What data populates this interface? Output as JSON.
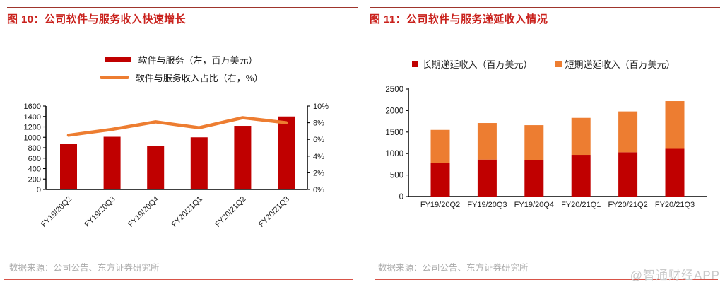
{
  "watermark": "@智通财经APP",
  "colors": {
    "bar_red": "#C00000",
    "orange": "#ED7D31",
    "title_red": "#C9211C",
    "top_rule": "#9E352C",
    "bottom_rule": "#D85348",
    "source_gray": "#ABABAB",
    "watermark_gray": "#C9C9C9",
    "axis_text": "#1A1A1A"
  },
  "figure10": {
    "title": "图 10：公司软件与服务收入快速增长",
    "source": "数据来源：公司公告、东方证券研究所",
    "legend": [
      {
        "label": "软件与服务（左，百万美元）"
      },
      {
        "label": "软件与服务收入占比（右，%）"
      }
    ]
  },
  "figure11": {
    "title": "图 11：公司软件与服务递延收入情况",
    "source": "数据来源：公司公告、东方证券研究所",
    "legend": [
      {
        "label": "长期递延收入（百万美元）"
      },
      {
        "label": "短期递延收入（百万美元）"
      }
    ]
  },
  "chart_data": [
    {
      "type": "bar",
      "title": "公司软件与服务收入快速增长",
      "categories": [
        "FY19/20Q2",
        "FY19/20Q3",
        "FY19/20Q4",
        "FY20/21Q1",
        "FY20/21Q2",
        "FY20/21Q3"
      ],
      "series": [
        {
          "name": "软件与服务（左，百万美元）",
          "type": "bar",
          "axis": "left",
          "color": "#C00000",
          "values": [
            880,
            1010,
            840,
            1000,
            1220,
            1400
          ]
        },
        {
          "name": "软件与服务收入占比（右，%）",
          "type": "line",
          "axis": "right",
          "color": "#ED7D31",
          "values": [
            6.5,
            7.2,
            8.1,
            7.4,
            8.6,
            8.0
          ]
        }
      ],
      "left_axis": {
        "min": 0,
        "max": 1600,
        "step": 200
      },
      "right_axis": {
        "min": 0,
        "max": 10,
        "step": 2,
        "suffix": "%"
      },
      "grid": false,
      "legend_position": "top"
    },
    {
      "type": "bar",
      "stacked": true,
      "title": "公司软件与服务递延收入情况",
      "categories": [
        "FY19/20Q2",
        "FY19/20Q3",
        "FY19/20Q4",
        "FY20/21Q1",
        "FY20/21Q2",
        "FY20/21Q3"
      ],
      "series": [
        {
          "name": "长期递延收入（百万美元）",
          "color": "#C00000",
          "values": [
            780,
            860,
            850,
            970,
            1030,
            1110
          ]
        },
        {
          "name": "短期递延收入（百万美元）",
          "color": "#ED7D31",
          "values": [
            770,
            850,
            810,
            860,
            950,
            1110
          ]
        }
      ],
      "left_axis": {
        "min": 0,
        "max": 2500,
        "step": 500
      },
      "grid": false,
      "legend_position": "top"
    }
  ]
}
